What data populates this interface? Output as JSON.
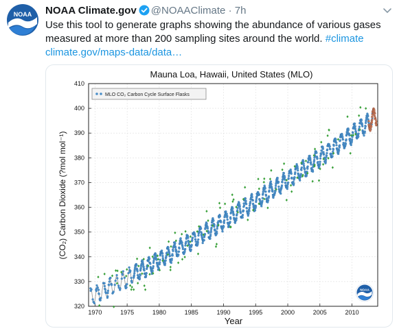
{
  "tweet": {
    "author_name": "NOAA Climate.gov",
    "handle": "@NOAAClimate",
    "separator": "·",
    "time": "7h",
    "text_line1": "Use this tool to generate graphs showing the abundance of various gases",
    "text_line2": "measured at more than 200 sampling sites around the world.",
    "hashtag": "#climate",
    "link": "climate.gov/maps-data/data…",
    "avatar_icon": "noaa-logo-icon",
    "verified_icon": "verified-badge-icon",
    "menu_icon": "chevron-down-icon",
    "colors": {
      "link": "#1b95e0",
      "noaa_blue": "#1f5fa8",
      "secondary": "#657786"
    }
  },
  "chart_data": {
    "type": "scatter",
    "title": "Mauna Loa, Hawaii, United States (MLO)",
    "xlabel": "Year",
    "ylabel": "(CO₂) Carbon Dioxide (?mol mol⁻¹)",
    "xlim": [
      1969,
      2014
    ],
    "ylim": [
      320,
      410
    ],
    "xticks": [
      "1970",
      "1975",
      "1980",
      "1985",
      "1990",
      "1995",
      "2000",
      "2005",
      "2010"
    ],
    "yticks": [
      "320",
      "330",
      "340",
      "350",
      "360",
      "370",
      "380",
      "390",
      "400",
      "410"
    ],
    "grid": true,
    "legend": {
      "position": "top-left",
      "label": "MLO CO₂ Carbon Cycle Surface Flasks"
    },
    "trend": {
      "start": [
        1969.3,
        323.5
      ],
      "end": [
        2013.7,
        396.5
      ],
      "seasonal_amplitude": 3.2
    },
    "series": [
      {
        "name": "MLO CO₂ Carbon Cycle Surface Flasks",
        "color": "#4a8fc9",
        "x_range": [
          1969.3,
          2013.5
        ]
      }
    ],
    "other_marks": {
      "outliers_color": "#3aa13a",
      "preliminary_color": "#c8785a",
      "fit_line_color": "#9a9a9a"
    },
    "logo_icon": "noaa-logo-icon"
  }
}
